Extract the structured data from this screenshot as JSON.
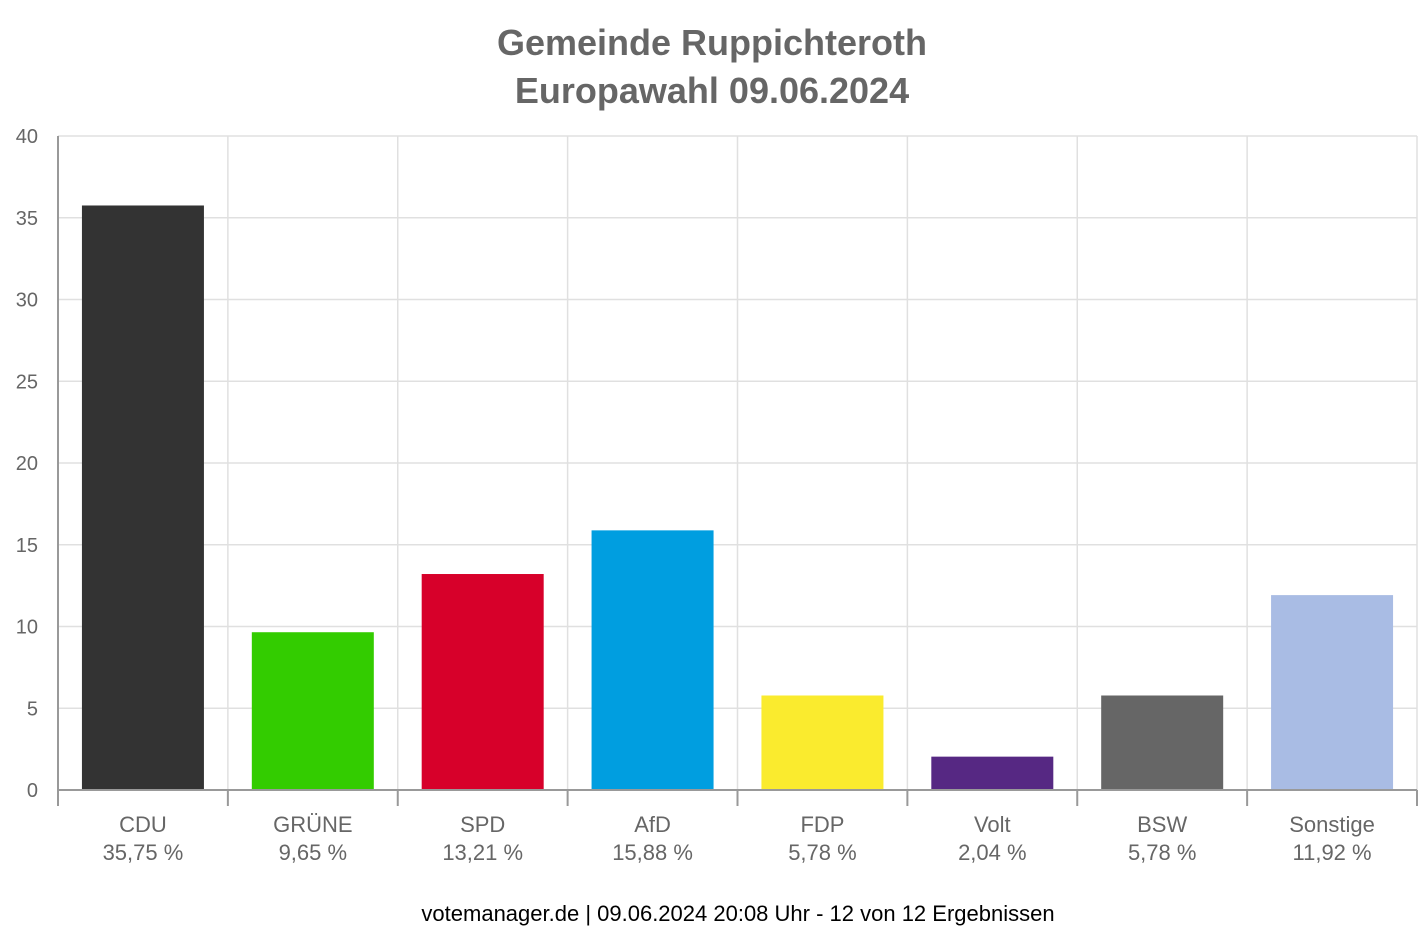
{
  "chart_data": {
    "type": "bar",
    "title_lines": [
      "Gemeinde Ruppichteroth",
      "Europawahl 09.06.2024"
    ],
    "categories": [
      "CDU",
      "GRÜNE",
      "SPD",
      "AfD",
      "FDP",
      "Volt",
      "BSW",
      "Sonstige"
    ],
    "values": [
      35.75,
      9.65,
      13.21,
      15.88,
      5.78,
      2.04,
      5.78,
      11.92
    ],
    "value_labels": [
      "35,75 %",
      "9,65 %",
      "13,21 %",
      "15,88 %",
      "5,78 %",
      "2,04 %",
      "5,78 %",
      "11,92 %"
    ],
    "colors": [
      "#333333",
      "#33cc00",
      "#d7002a",
      "#009ee0",
      "#faeb2e",
      "#562883",
      "#666666",
      "#a9bce4"
    ],
    "ylim": [
      0,
      40
    ],
    "yticks": [
      0,
      5,
      10,
      15,
      20,
      25,
      30,
      35,
      40
    ],
    "grid": true,
    "xlabel": "",
    "ylabel": ""
  },
  "footer": "votemanager.de | 09.06.2024 20:08 Uhr - 12 von 12 Ergebnissen"
}
